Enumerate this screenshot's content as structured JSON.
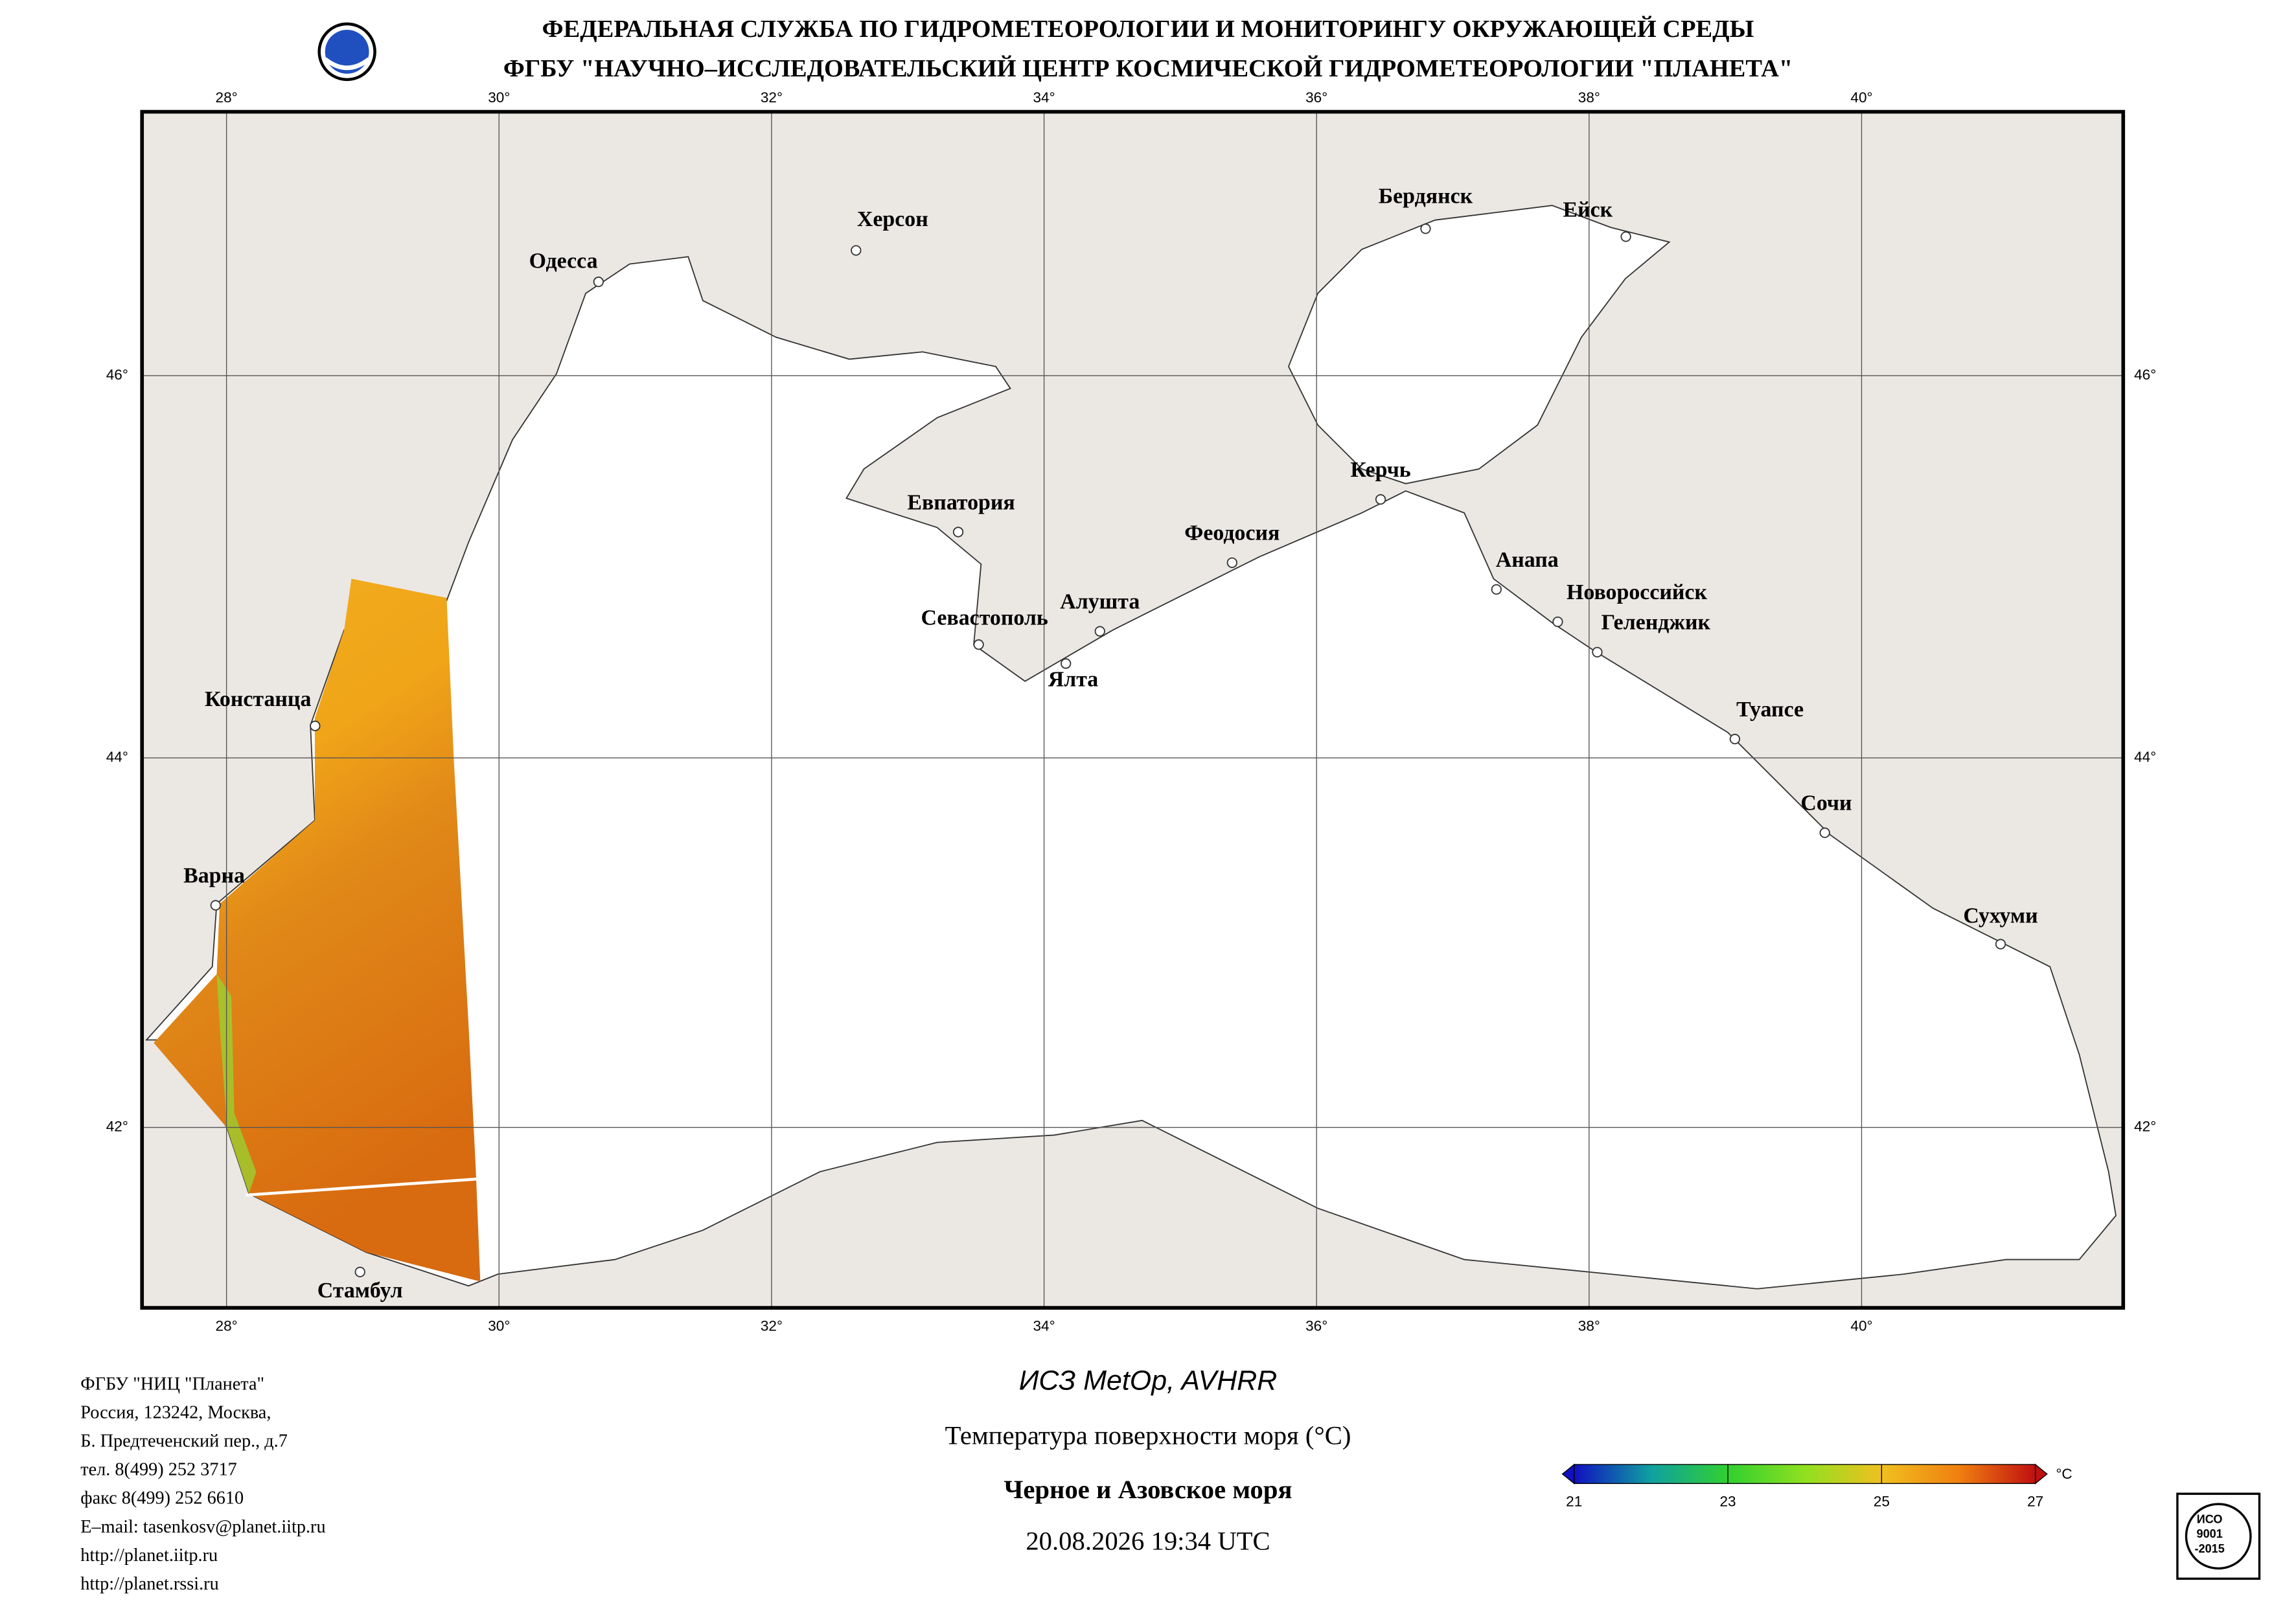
{
  "header": {
    "line1": "ФЕДЕРАЛЬНАЯ СЛУЖБА ПО ГИДРОМЕТЕОРОЛОГИИ И МОНИТОРИНГУ ОКРУЖАЮЩЕЙ СРЕДЫ",
    "line2": "ФГБУ \"НАУЧНО–ИССЛЕДОВАТЕЛЬСКИЙ ЦЕНТР КОСМИЧЕСКОЙ ГИДРОМЕТЕОРОЛОГИИ \"ПЛАНЕТА\""
  },
  "map": {
    "xlim": [
      27.38,
      41.92
    ],
    "ylim": [
      41.0,
      47.34
    ],
    "xticks": [
      {
        "value": 28,
        "label": "28°"
      },
      {
        "value": 30,
        "label": "30°"
      },
      {
        "value": 32,
        "label": "32°"
      },
      {
        "value": 34,
        "label": "34°"
      },
      {
        "value": 36,
        "label": "36°"
      },
      {
        "value": 38,
        "label": "38°"
      },
      {
        "value": 40,
        "label": "40°"
      }
    ],
    "yticks": [
      {
        "value": 42,
        "label": "42°"
      },
      {
        "value": 44,
        "label": "44°"
      },
      {
        "value": 46,
        "label": "46°"
      }
    ],
    "cities": [
      {
        "name": "Одесса",
        "lon": 30.73,
        "lat": 46.48
      },
      {
        "name": "Херсон",
        "lon": 32.62,
        "lat": 46.64
      },
      {
        "name": "Бердянск",
        "lon": 36.8,
        "lat": 46.75
      },
      {
        "name": "Ейск",
        "lon": 38.27,
        "lat": 46.71
      },
      {
        "name": "Евпатория",
        "lon": 33.37,
        "lat": 45.19
      },
      {
        "name": "Феодосия",
        "lon": 35.38,
        "lat": 45.03
      },
      {
        "name": "Керчь",
        "lon": 36.47,
        "lat": 45.36
      },
      {
        "name": "Севастополь",
        "lon": 33.52,
        "lat": 44.6
      },
      {
        "name": "Алушта",
        "lon": 34.41,
        "lat": 44.67
      },
      {
        "name": "Ялта",
        "lon": 34.16,
        "lat": 44.5
      },
      {
        "name": "Анапа",
        "lon": 37.32,
        "lat": 44.89
      },
      {
        "name": "Новороссийск",
        "lon": 37.77,
        "lat": 44.72
      },
      {
        "name": "Геленджик",
        "lon": 38.06,
        "lat": 44.56
      },
      {
        "name": "Туапсе",
        "lon": 39.07,
        "lat": 44.1
      },
      {
        "name": "Сочи",
        "lon": 39.73,
        "lat": 43.6
      },
      {
        "name": "Сухуми",
        "lon": 41.02,
        "lat": 43.0
      },
      {
        "name": "Констанца",
        "lon": 28.65,
        "lat": 44.17
      },
      {
        "name": "Варна",
        "lon": 27.92,
        "lat": 43.21
      },
      {
        "name": "Стамбул",
        "lon": 28.98,
        "lat": 41.2
      }
    ]
  },
  "caption": {
    "satellite": "ИСЗ MetOp, AVHRR",
    "product": "Температура поверхности моря (°C)",
    "region": "Черное и Азовское моря",
    "datetime": "20.08.2026 19:34 UTC"
  },
  "colorbar": {
    "lim": [
      21,
      27
    ],
    "ticks": [
      21,
      23,
      25,
      27
    ],
    "unit": "°C",
    "colors": [
      "#1010c0",
      "#10a0a0",
      "#30d030",
      "#90e020",
      "#f0c020",
      "#f08010",
      "#c01010"
    ]
  },
  "contacts": [
    "ФГБУ \"НИЦ \"Планета\"",
    "Россия, 123242, Москва,",
    "Б. Предтеченский пер., д.7",
    "тел. 8(499) 252 3717",
    "факс 8(499) 252 6610",
    "E–mail: tasenkosv@planet.iitp.ru",
    "http://planet.iitp.ru",
    "http://planet.rssi.ru"
  ],
  "stamp": {
    "line1": "ИСО",
    "line2": "9001",
    "line3": "-2015"
  }
}
